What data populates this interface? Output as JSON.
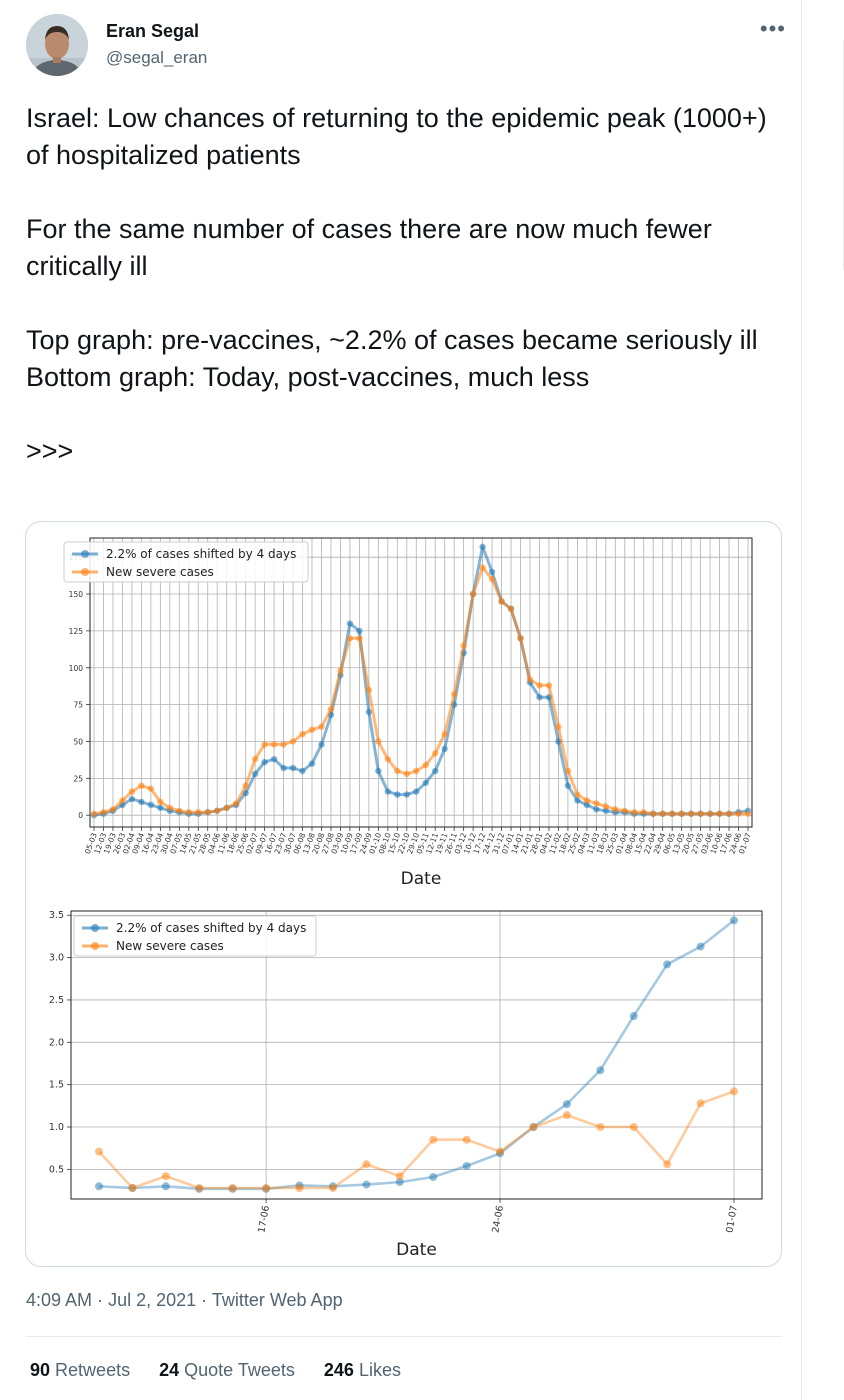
{
  "user": {
    "name": "Eran Segal",
    "handle": "@segal_eran",
    "more_icon": "more-horizontal-icon"
  },
  "tweet": {
    "text": "Israel: Low chances of returning to the epidemic peak (1000+) of hospitalized patients\n\nFor the same number of cases there are now much fewer critically ill\n\nTop graph: pre-vaccines, ~2.2% of cases became seriously ill\nBottom graph: Today, post-vaccines, much less\n\n>>>"
  },
  "meta": {
    "time": "4:09 AM",
    "separator": "·",
    "date": "Jul 2, 2021",
    "source": "Twitter Web App"
  },
  "stats": {
    "retweets_count": "90",
    "retweets_label": "Retweets",
    "quotes_count": "24",
    "quotes_label": "Quote Tweets",
    "likes_count": "246",
    "likes_label": "Likes"
  },
  "colors": {
    "blue": "#1f77b4",
    "orange": "#ff7f0e"
  },
  "chart_data": [
    {
      "type": "line",
      "xlabel": "Date",
      "ylabel": "",
      "ylim": [
        -8,
        188
      ],
      "yticks": [
        0,
        25,
        50,
        75,
        100,
        125,
        150,
        175
      ],
      "grid": true,
      "legend_position": "top-left",
      "categories": [
        "05-03",
        "12-03",
        "19-03",
        "26-03",
        "02-04",
        "09-04",
        "16-04",
        "23-04",
        "30-04",
        "07-05",
        "14-05",
        "21-05",
        "28-05",
        "04-06",
        "11-06",
        "18-06",
        "25-06",
        "02-07",
        "09-07",
        "16-07",
        "23-07",
        "30-07",
        "06-08",
        "13-08",
        "20-08",
        "27-08",
        "03-09",
        "10-09",
        "17-09",
        "24-09",
        "01-10",
        "08-10",
        "15-10",
        "22-10",
        "29-10",
        "05-11",
        "12-11",
        "19-11",
        "26-11",
        "03-12",
        "10-12",
        "17-12",
        "24-12",
        "31-12",
        "07-01",
        "14-01",
        "21-01",
        "28-01",
        "04-02",
        "11-02",
        "18-02",
        "25-02",
        "04-03",
        "11-03",
        "18-03",
        "25-03",
        "01-04",
        "08-04",
        "15-04",
        "22-04",
        "29-04",
        "06-05",
        "13-05",
        "20-05",
        "27-05",
        "03-06",
        "10-06",
        "17-06",
        "24-06",
        "01-07"
      ],
      "series": [
        {
          "name": "2.2% of cases shifted by 4 days",
          "values": [
            0,
            1,
            3,
            7,
            11,
            9,
            7,
            5,
            3,
            2,
            1,
            1,
            2,
            3,
            5,
            7,
            15,
            28,
            36,
            38,
            32,
            32,
            30,
            35,
            48,
            68,
            95,
            130,
            125,
            70,
            30,
            16,
            14,
            14,
            16,
            22,
            30,
            45,
            75,
            110,
            150,
            182,
            165,
            145,
            140,
            120,
            90,
            80,
            80,
            50,
            20,
            10,
            7,
            4,
            3,
            2,
            2,
            1,
            1,
            1,
            1,
            1,
            1,
            1,
            1,
            1,
            1,
            1,
            2,
            3
          ]
        },
        {
          "name": "New severe cases",
          "values": [
            1,
            2,
            4,
            10,
            16,
            20,
            18,
            9,
            5,
            3,
            2,
            2,
            2,
            3,
            5,
            8,
            20,
            38,
            48,
            48,
            48,
            50,
            55,
            58,
            60,
            72,
            98,
            120,
            120,
            85,
            50,
            38,
            30,
            28,
            30,
            34,
            42,
            55,
            82,
            115,
            150,
            168,
            160,
            145,
            140,
            120,
            92,
            88,
            88,
            60,
            30,
            14,
            10,
            8,
            6,
            4,
            3,
            2,
            2,
            1,
            1,
            1,
            1,
            1,
            1,
            1,
            1,
            1,
            1,
            1
          ]
        }
      ]
    },
    {
      "type": "line",
      "xlabel": "Date",
      "ylabel": "",
      "ylim": [
        0.15,
        3.55
      ],
      "yticks": [
        0.5,
        1.0,
        1.5,
        2.0,
        2.5,
        3.0,
        3.5
      ],
      "ytick_labels": [
        "0.5",
        "1.0",
        "1.5",
        "2.0",
        "2.5",
        "3.0",
        "3.5"
      ],
      "xticks": [
        {
          "label": "17-06",
          "index": 5
        },
        {
          "label": "24-06",
          "index": 12
        },
        {
          "label": "01-07",
          "index": 19
        }
      ],
      "grid": true,
      "legend_position": "top-left",
      "series": [
        {
          "name": "2.2% of cases shifted by 4 days",
          "values": [
            0.3,
            0.28,
            0.3,
            0.27,
            0.27,
            0.27,
            0.31,
            0.3,
            0.32,
            0.35,
            0.41,
            0.54,
            0.69,
            1.0,
            1.27,
            1.67,
            2.31,
            2.92,
            3.13,
            3.44
          ]
        },
        {
          "name": "New severe cases",
          "values": [
            0.71,
            0.28,
            0.42,
            0.28,
            0.28,
            0.28,
            0.28,
            0.28,
            0.56,
            0.42,
            0.85,
            0.85,
            0.71,
            1.0,
            1.14,
            1.0,
            1.0,
            0.56,
            1.28,
            1.42
          ]
        }
      ]
    }
  ]
}
